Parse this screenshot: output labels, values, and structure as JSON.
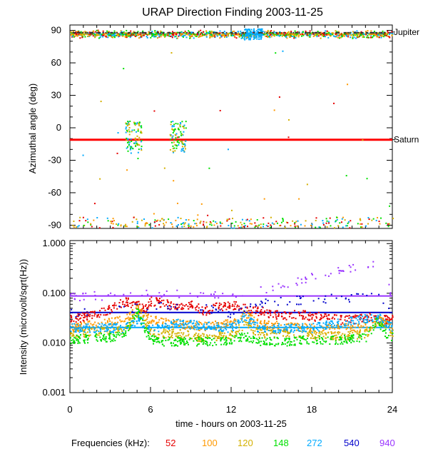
{
  "chart_data": [
    {
      "type": "scatter",
      "title": "URAP Direction Finding  2003-11-25",
      "ylabel": "Azimuthal angle (deg)",
      "xlim": [
        0,
        24
      ],
      "ylim": [
        -93,
        95
      ],
      "yticks": [
        {
          "v": 90,
          "label": "90"
        },
        {
          "v": 60,
          "label": "60"
        },
        {
          "v": 30,
          "label": "30"
        },
        {
          "v": 0,
          "label": "0"
        },
        {
          "v": -30,
          "label": "-30"
        },
        {
          "v": -60,
          "label": "-60"
        },
        {
          "v": -90,
          "label": "-90"
        }
      ],
      "reference_lines": [
        {
          "name": "Jupiter",
          "value": 88.5,
          "color": "#000000"
        },
        {
          "name": "Saturn",
          "value": -11,
          "color": "#ff0000"
        }
      ],
      "series": [
        {
          "name": "52",
          "color": "#e60000"
        },
        {
          "name": "100",
          "color": "#ff9900"
        },
        {
          "name": "120",
          "color": "#d4b000"
        },
        {
          "name": "148",
          "color": "#00e000"
        },
        {
          "name": "272",
          "color": "#00aaff"
        },
        {
          "name": "540",
          "color": "#0000cc"
        },
        {
          "name": "940",
          "color": "#9933ff"
        }
      ]
    },
    {
      "type": "scatter",
      "ylabel": "Intensity (microvolt/sqrt(Hz))",
      "xlabel": "time - hours on 2003-11-25",
      "xlim": [
        0,
        24
      ],
      "yscale": "log",
      "ylim": [
        0.001,
        1.15
      ],
      "xticks": [
        {
          "v": 0,
          "label": "0"
        },
        {
          "v": 6,
          "label": "6"
        },
        {
          "v": 12,
          "label": "12"
        },
        {
          "v": 18,
          "label": "18"
        },
        {
          "v": 24,
          "label": "24"
        }
      ],
      "yticks": [
        {
          "v": 1,
          "label": "1.000"
        },
        {
          "v": 0.1,
          "label": "0.100"
        },
        {
          "v": 0.01,
          "label": "0.010"
        },
        {
          "v": 0.001,
          "label": "0.001"
        }
      ],
      "background_levels": [
        {
          "frequency": "940",
          "value": 0.088,
          "color": "#9933ff"
        },
        {
          "frequency": "540",
          "value": 0.041,
          "color": "#0000cc"
        },
        {
          "frequency": "272",
          "value": 0.0205,
          "color": "#00aaff"
        }
      ],
      "series": [
        {
          "name": "52",
          "color": "#e60000",
          "x": [
            0,
            2,
            3,
            4,
            5,
            5.5,
            6,
            7,
            8,
            9,
            10,
            11,
            12,
            13,
            14,
            15,
            16,
            17,
            18,
            19,
            20,
            21,
            22,
            23,
            24
          ],
          "y": [
            0.03,
            0.04,
            0.05,
            0.07,
            0.06,
            0.05,
            0.07,
            0.065,
            0.05,
            0.06,
            0.045,
            0.055,
            0.06,
            0.05,
            0.045,
            0.04,
            0.035,
            0.04,
            0.035,
            0.035,
            0.03,
            0.03,
            0.035,
            0.03,
            0.03
          ]
        },
        {
          "name": "100",
          "color": "#ff9900",
          "x": [
            0,
            2,
            4,
            5,
            5.5,
            6,
            8,
            10,
            12,
            13,
            14,
            16,
            18,
            20,
            22,
            23,
            24
          ],
          "y": [
            0.02,
            0.025,
            0.03,
            0.05,
            0.04,
            0.03,
            0.025,
            0.022,
            0.025,
            0.04,
            0.025,
            0.022,
            0.02,
            0.02,
            0.022,
            0.03,
            0.022
          ]
        },
        {
          "name": "120",
          "color": "#d4b000",
          "x": [
            0,
            2,
            4,
            5,
            5.5,
            6,
            8,
            10,
            12,
            13,
            14,
            16,
            18,
            20,
            22,
            23,
            24
          ],
          "y": [
            0.015,
            0.018,
            0.018,
            0.04,
            0.03,
            0.016,
            0.016,
            0.013,
            0.015,
            0.025,
            0.016,
            0.016,
            0.015,
            0.014,
            0.016,
            0.03,
            0.016
          ]
        },
        {
          "name": "148",
          "color": "#00e000",
          "x": [
            0,
            2,
            4,
            4.5,
            5,
            5.5,
            6,
            7,
            8,
            9,
            10,
            11,
            12,
            13,
            14,
            16,
            18,
            20,
            22,
            22.8,
            23.5,
            24
          ],
          "y": [
            0.012,
            0.013,
            0.014,
            0.025,
            0.045,
            0.02,
            0.012,
            0.011,
            0.011,
            0.011,
            0.011,
            0.011,
            0.012,
            0.014,
            0.011,
            0.011,
            0.012,
            0.012,
            0.013,
            0.03,
            0.016,
            0.013
          ]
        },
        {
          "name": "272",
          "color": "#00aaff",
          "x": [
            0,
            4,
            5,
            6,
            8,
            12,
            13,
            14,
            18,
            22.8,
            24
          ],
          "y": [
            0.0205,
            0.0205,
            0.03,
            0.0205,
            0.025,
            0.0205,
            0.035,
            0.0205,
            0.0205,
            0.035,
            0.0205
          ]
        },
        {
          "name": "540",
          "color": "#0000cc",
          "x": [
            0,
            8.2,
            12,
            13,
            14.5,
            22.8,
            24
          ],
          "y": [
            0.041,
            0.06,
            0.041,
            0.05,
            0.07,
            0.09,
            0.041
          ]
        },
        {
          "name": "940",
          "color": "#9933ff",
          "x": [
            0,
            8.2,
            12,
            22.8,
            24
          ],
          "y": [
            0.088,
            0.1,
            0.088,
            0.45,
            0.088
          ]
        }
      ]
    }
  ],
  "legend": {
    "label": "Frequencies (kHz):",
    "items": [
      {
        "name": "52",
        "color": "#e60000"
      },
      {
        "name": "100",
        "color": "#ff9900"
      },
      {
        "name": "120",
        "color": "#d4b000"
      },
      {
        "name": "148",
        "color": "#00e000"
      },
      {
        "name": "272",
        "color": "#00aaff"
      },
      {
        "name": "540",
        "color": "#0000cc"
      },
      {
        "name": "940",
        "color": "#9933ff"
      }
    ]
  }
}
